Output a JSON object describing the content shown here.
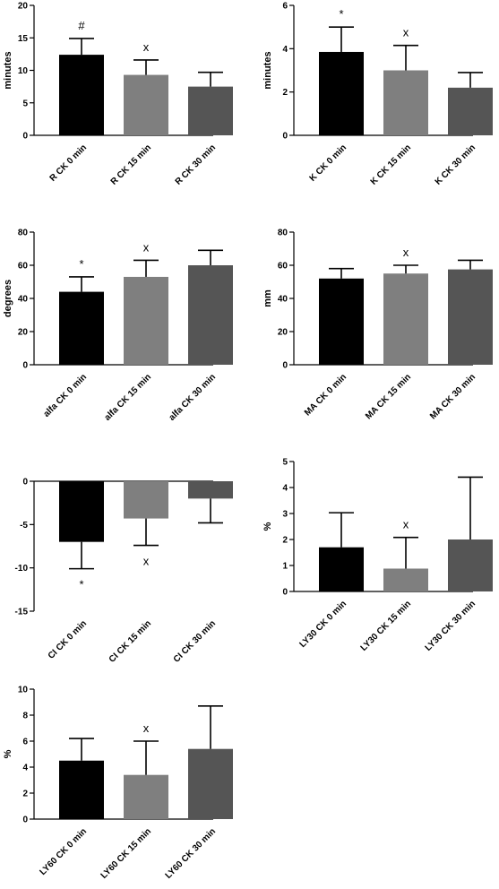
{
  "colors": {
    "cat0": "#000000",
    "cat1": "#7f7f7f",
    "cat2": "#555555",
    "axis": "#000000"
  },
  "chart_data": [
    {
      "type": "bar",
      "ylabel": "minutes",
      "ylim": [
        0,
        20
      ],
      "yticks": [
        "0",
        "5",
        "10",
        "15",
        "20"
      ],
      "categories": [
        "R CK 0 min",
        "R CK 15 min",
        "R CK 30 min"
      ],
      "values": [
        12.4,
        9.3,
        7.5
      ],
      "errors": [
        2.5,
        2.3,
        2.2
      ],
      "annotations": [
        "#",
        "x",
        ""
      ]
    },
    {
      "type": "bar",
      "ylabel": "minutes",
      "ylim": [
        0,
        6
      ],
      "yticks": [
        "0",
        "2",
        "4",
        "6"
      ],
      "categories": [
        "K CK 0 min",
        "K CK 15 min",
        "K CK 30 min"
      ],
      "values": [
        3.85,
        3.0,
        2.2
      ],
      "errors": [
        1.15,
        1.15,
        0.7
      ],
      "annotations": [
        "*",
        "x",
        ""
      ]
    },
    {
      "type": "bar",
      "ylabel": "degrees",
      "ylim": [
        0,
        80
      ],
      "yticks": [
        "0",
        "20",
        "40",
        "60",
        "80"
      ],
      "categories": [
        "alfa CK 0 min",
        "alfa CK 15 min",
        "alfa CK 30 min"
      ],
      "values": [
        44,
        53,
        60
      ],
      "errors": [
        9,
        10,
        9
      ],
      "annotations": [
        "*",
        "x",
        ""
      ]
    },
    {
      "type": "bar",
      "ylabel": "mm",
      "ylim": [
        0,
        80
      ],
      "yticks": [
        "0",
        "20",
        "40",
        "60",
        "80"
      ],
      "categories": [
        "MA CK 0 min",
        "MA CK 15 min",
        "MA CK 30 min"
      ],
      "values": [
        52,
        55,
        57.5
      ],
      "errors": [
        6,
        5,
        5.5
      ],
      "annotations": [
        "",
        "x",
        ""
      ]
    },
    {
      "type": "bar",
      "ylabel": "",
      "ylim": [
        -15,
        0
      ],
      "yticks": [
        "-15",
        "-10",
        "-5",
        "0"
      ],
      "categories": [
        "CI CK 0 min",
        "CI CK 15 min",
        "CI CK 30 min"
      ],
      "values": [
        -7,
        -4.3,
        -2
      ],
      "errors": [
        3.1,
        3.1,
        2.8
      ],
      "annotations": [
        "*",
        "x",
        ""
      ]
    },
    {
      "type": "bar",
      "ylabel": "%",
      "ylim": [
        0,
        5
      ],
      "yticks": [
        "0",
        "1",
        "2",
        "3",
        "4",
        "5"
      ],
      "categories": [
        "LY30 CK 0 min",
        "LY30 CK 15 min",
        "LY30 CK 30 min"
      ],
      "values": [
        1.7,
        0.88,
        2.0
      ],
      "errors": [
        1.33,
        1.2,
        2.4
      ],
      "annotations": [
        "",
        "x",
        ""
      ]
    },
    {
      "type": "bar",
      "ylabel": "%",
      "ylim": [
        0,
        10
      ],
      "yticks": [
        "0",
        "2",
        "4",
        "6",
        "8",
        "10"
      ],
      "categories": [
        "LY60 CK 0 min",
        "LY60 CK 15 min",
        "LY60 CK 30 min"
      ],
      "values": [
        4.5,
        3.4,
        5.4
      ],
      "errors": [
        1.7,
        2.6,
        3.3
      ],
      "annotations": [
        "",
        "x",
        ""
      ]
    }
  ]
}
